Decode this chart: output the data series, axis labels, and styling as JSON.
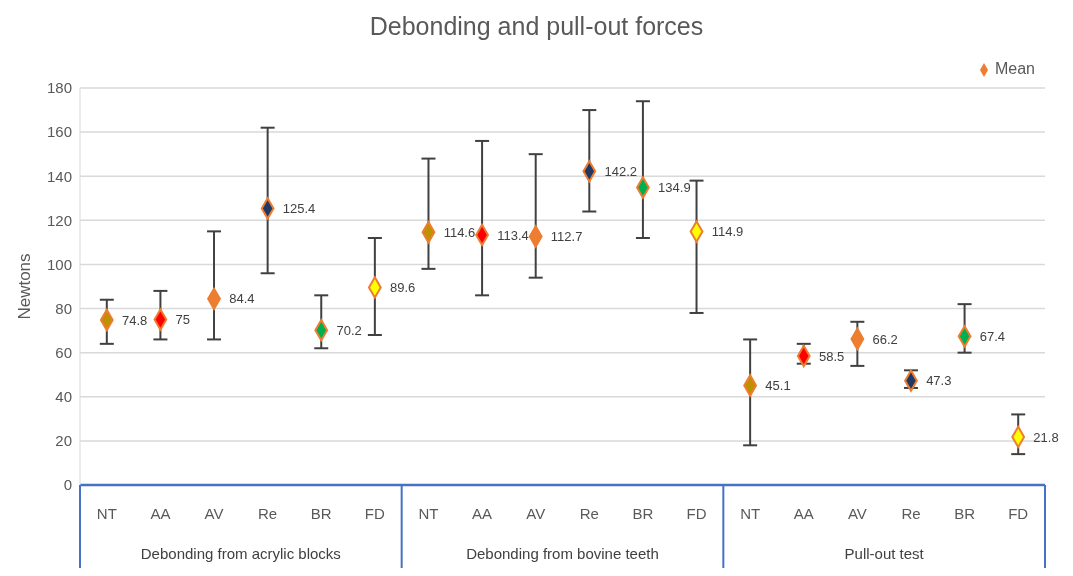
{
  "chart_data": {
    "type": "scatter",
    "title": "Debonding and pull-out forces",
    "ylabel": "Newtons",
    "categories": [
      "NT",
      "AA",
      "AV",
      "Re",
      "BR",
      "FD",
      "NT",
      "AA",
      "AV",
      "Re",
      "BR",
      "FD",
      "NT",
      "AA",
      "AV",
      "Re",
      "BR",
      "FD"
    ],
    "annotations": [
      "Debonding from acrylic blocks",
      "Debonding from bovine teeth",
      "Pull-out test"
    ],
    "series": [
      {
        "name": "Mean",
        "color": "#ed7d31",
        "colors": [
          "#bf9000",
          "#ff0000",
          "#ed7d31",
          "#203864",
          "#00b050",
          "#ffff00",
          "#bf9000",
          "#ff0000",
          "#ed7d31",
          "#203864",
          "#00b050",
          "#ffff00",
          "#bf9000",
          "#ff0000",
          "#ed7d31",
          "#203864",
          "#00b050",
          "#ffff00"
        ],
        "values": [
          74.8,
          75,
          84.4,
          125.4,
          70.2,
          89.6,
          114.6,
          113.4,
          112.7,
          142.2,
          134.9,
          114.9,
          45.1,
          58.5,
          66.2,
          47.3,
          67.4,
          21.8
        ],
        "errors": [
          [
            64,
            84
          ],
          [
            66,
            88
          ],
          [
            66,
            115
          ],
          [
            96,
            162
          ],
          [
            62,
            86
          ],
          [
            68,
            112
          ],
          [
            98,
            148
          ],
          [
            86,
            156
          ],
          [
            94,
            150
          ],
          [
            124,
            170
          ],
          [
            112,
            174
          ],
          [
            78,
            138
          ],
          [
            18,
            66
          ],
          [
            55,
            64
          ],
          [
            54,
            74
          ],
          [
            44,
            52
          ],
          [
            60,
            82
          ],
          [
            14,
            32
          ]
        ]
      }
    ],
    "ylim": [
      0,
      180
    ],
    "yticks": [
      0,
      20,
      40,
      60,
      80,
      100,
      120,
      140,
      160,
      180
    ],
    "grid": "y",
    "legend": "top right",
    "marker": "diamond",
    "data_labels": true
  }
}
